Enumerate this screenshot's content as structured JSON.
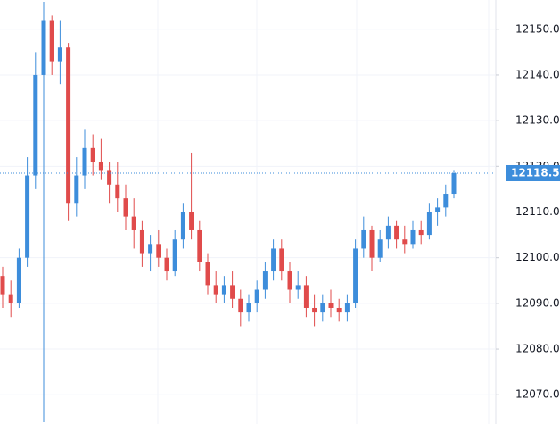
{
  "chart_data": {
    "type": "candlestick",
    "ylim": [
      12063.6,
      12156.4
    ],
    "yticks": [
      {
        "value": 12070,
        "label": "12070.00"
      },
      {
        "value": 12080,
        "label": "12080.00"
      },
      {
        "value": 12090,
        "label": "12090.00"
      },
      {
        "value": 12100,
        "label": "12100.00"
      },
      {
        "value": 12110,
        "label": "12110.00"
      },
      {
        "value": 12120,
        "label": "12120.00"
      },
      {
        "value": 12130,
        "label": "12130.00"
      },
      {
        "value": 12140,
        "label": "12140.00"
      },
      {
        "value": 12150,
        "label": "12150.00"
      }
    ],
    "grid": true,
    "up_color": "#3d8ddb",
    "down_color": "#e04b4b",
    "open": [
      12096,
      12092,
      12090,
      12100,
      12118,
      12140,
      12152,
      12143,
      12146,
      12112,
      12118,
      12124,
      12121,
      12119,
      12116,
      12113,
      12109,
      12106,
      12101,
      12103,
      12100,
      12097,
      12104,
      12110,
      12106,
      12099,
      12094,
      12092,
      12094,
      12091,
      12088,
      12090,
      12093,
      12097,
      12102,
      12097,
      12093,
      12094,
      12089,
      12088,
      12090,
      12089,
      12088,
      12090,
      12102,
      12106,
      12100,
      12104,
      12107,
      12104,
      12103,
      12106,
      12105,
      12110,
      12111,
      12114
    ],
    "high": [
      12098,
      12095,
      12102,
      12122,
      12145,
      12156,
      12153,
      12152,
      12147,
      12122,
      12128,
      12127,
      12126,
      12121,
      12121,
      12116,
      12113,
      12108,
      12105,
      12106,
      12102,
      12106,
      12112,
      12123,
      12108,
      12101,
      12097,
      12096,
      12097,
      12093,
      12092,
      12095,
      12099,
      12104,
      12104,
      12099,
      12097,
      12096,
      12092,
      12092,
      12093,
      12091,
      12092,
      12104,
      12109,
      12107,
      12106,
      12109,
      12108,
      12107,
      12108,
      12108,
      12112,
      12113,
      12116,
      12119
    ],
    "low": [
      12089,
      12087,
      12089,
      12098,
      12115,
      12064,
      12140,
      12138,
      12108,
      12109,
      12115,
      12118,
      12117,
      12112,
      12110,
      12106,
      12102,
      12098,
      12097,
      12098,
      12095,
      12096,
      12102,
      12104,
      12097,
      12092,
      12090,
      12090,
      12089,
      12085,
      12086,
      12088,
      12091,
      12095,
      12095,
      12090,
      12091,
      12087,
      12085,
      12086,
      12087,
      12086,
      12086,
      12089,
      12100,
      12097,
      12099,
      12102,
      12102,
      12101,
      12102,
      12103,
      12104,
      12107,
      12109,
      12113
    ],
    "close": [
      12092,
      12090,
      12100,
      12118,
      12140,
      12152,
      12143,
      12146,
      12112,
      12118,
      12124,
      12121,
      12119,
      12116,
      12113,
      12109,
      12106,
      12101,
      12103,
      12100,
      12097,
      12104,
      12110,
      12106,
      12099,
      12094,
      12092,
      12094,
      12091,
      12088,
      12090,
      12093,
      12097,
      12102,
      12097,
      12093,
      12094,
      12089,
      12088,
      12090,
      12089,
      12088,
      12090,
      12102,
      12106,
      12100,
      12104,
      12107,
      12104,
      12103,
      12106,
      12105,
      12110,
      12111,
      12114,
      12118.5
    ],
    "price_label": {
      "value": 12118.5,
      "label": "12118.50"
    }
  }
}
